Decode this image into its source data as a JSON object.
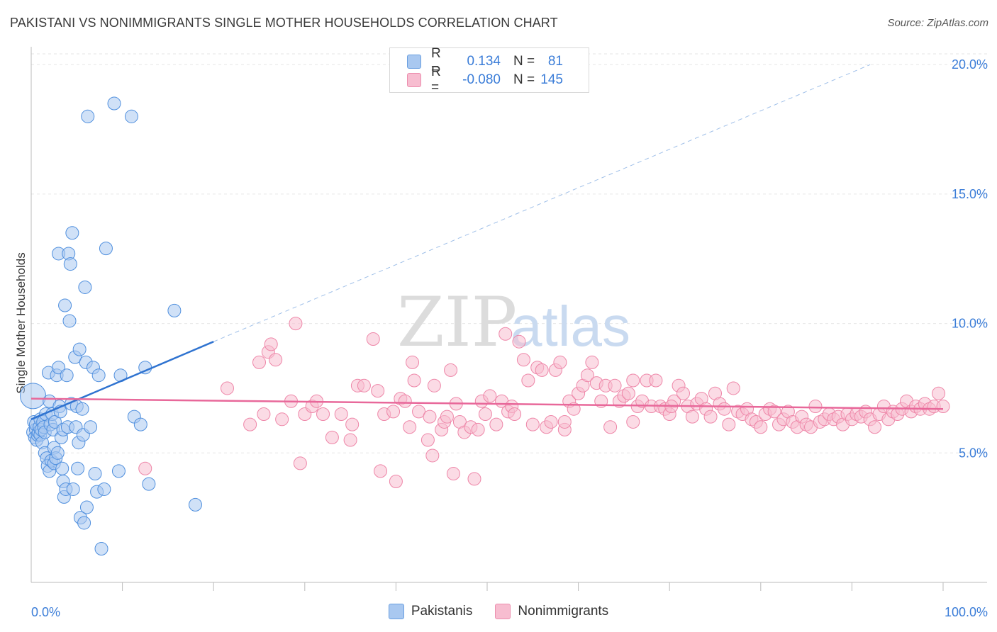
{
  "title": "PAKISTANI VS NONIMMIGRANTS SINGLE MOTHER HOUSEHOLDS CORRELATION CHART",
  "source": "Source: ZipAtlas.com",
  "watermark": {
    "zip": "ZIP",
    "atlas": "atlas"
  },
  "legend": {
    "rows": [
      {
        "r_label": "R =",
        "r_value": "0.134",
        "n_label": "N =",
        "n_value": "81",
        "color": "#a9c8f0",
        "border": "#6a9fe0"
      },
      {
        "r_label": "R =",
        "r_value": "-0.080",
        "n_label": "N =",
        "n_value": "145",
        "color": "#f7bdd0",
        "border": "#ec8eae"
      }
    ]
  },
  "bottom_legend": [
    {
      "label": "Pakistanis",
      "color": "#a9c8f0",
      "border": "#6a9fe0"
    },
    {
      "label": "Nonimmigrants",
      "color": "#f7bdd0",
      "border": "#ec8eae"
    }
  ],
  "chart_data": {
    "type": "scatter",
    "title": "PAKISTANI VS NONIMMIGRANTS SINGLE MOTHER HOUSEHOLDS CORRELATION CHART",
    "xlabel": "",
    "ylabel": "Single Mother Households",
    "xlim": [
      0,
      100
    ],
    "ylim": [
      0,
      20.8
    ],
    "x_tick_labels": [
      "0.0%",
      "100.0%"
    ],
    "y_ticks": [
      5,
      10,
      15,
      20
    ],
    "y_tick_labels": [
      "5.0%",
      "10.0%",
      "15.0%",
      "20.0%"
    ],
    "grid": true,
    "colors": {
      "pakistanis": "#4f8fde",
      "nonimmigrants": "#ee86a8",
      "blue_line": "#2f73d0",
      "pink_line": "#e8689a",
      "tick_label": "#3b7dd8"
    },
    "series": [
      {
        "name": "Pakistanis",
        "trend": {
          "x0": 0,
          "y0": 6.3,
          "x1": 20,
          "y1": 9.3,
          "dashed_to_x": 92,
          "dashed_to_y": 20.0
        },
        "points": [
          [
            0.2,
            7.2
          ],
          [
            0.2,
            5.8
          ],
          [
            0.3,
            6.2
          ],
          [
            0.4,
            5.6
          ],
          [
            0.5,
            5.9
          ],
          [
            0.5,
            6.1
          ],
          [
            0.6,
            5.5
          ],
          [
            0.7,
            5.7
          ],
          [
            0.8,
            5.8
          ],
          [
            0.9,
            6.0
          ],
          [
            1.0,
            6.3
          ],
          [
            1.0,
            5.7
          ],
          [
            1.1,
            5.9
          ],
          [
            1.2,
            5.4
          ],
          [
            1.3,
            6.2
          ],
          [
            1.4,
            6.0
          ],
          [
            1.5,
            5.8
          ],
          [
            1.5,
            5.0
          ],
          [
            1.6,
            6.5
          ],
          [
            1.7,
            4.8
          ],
          [
            1.8,
            4.5
          ],
          [
            1.9,
            8.1
          ],
          [
            2.0,
            7.0
          ],
          [
            2.0,
            4.3
          ],
          [
            2.1,
            6.1
          ],
          [
            2.2,
            4.7
          ],
          [
            2.3,
            6.5
          ],
          [
            2.4,
            5.9
          ],
          [
            2.5,
            5.2
          ],
          [
            2.5,
            4.6
          ],
          [
            2.6,
            6.2
          ],
          [
            2.7,
            4.8
          ],
          [
            2.8,
            8.0
          ],
          [
            2.9,
            5.0
          ],
          [
            3.0,
            8.3
          ],
          [
            3.0,
            12.7
          ],
          [
            3.1,
            6.8
          ],
          [
            3.2,
            6.6
          ],
          [
            3.3,
            5.6
          ],
          [
            3.4,
            4.4
          ],
          [
            3.5,
            3.9
          ],
          [
            3.5,
            5.9
          ],
          [
            3.6,
            3.3
          ],
          [
            3.7,
            10.7
          ],
          [
            3.8,
            3.6
          ],
          [
            3.9,
            8.0
          ],
          [
            4.0,
            6.0
          ],
          [
            4.1,
            12.7
          ],
          [
            4.2,
            10.1
          ],
          [
            4.3,
            12.3
          ],
          [
            4.4,
            6.9
          ],
          [
            4.5,
            13.5
          ],
          [
            4.6,
            3.6
          ],
          [
            4.8,
            8.7
          ],
          [
            4.9,
            6.0
          ],
          [
            5.0,
            6.8
          ],
          [
            5.1,
            4.4
          ],
          [
            5.2,
            5.4
          ],
          [
            5.3,
            9.0
          ],
          [
            5.4,
            2.5
          ],
          [
            5.6,
            6.7
          ],
          [
            5.7,
            5.7
          ],
          [
            5.8,
            2.3
          ],
          [
            5.9,
            11.4
          ],
          [
            6.0,
            8.5
          ],
          [
            6.1,
            2.9
          ],
          [
            6.2,
            18.0
          ],
          [
            6.5,
            6.0
          ],
          [
            6.8,
            8.3
          ],
          [
            7.0,
            4.2
          ],
          [
            7.2,
            3.5
          ],
          [
            7.4,
            8.0
          ],
          [
            7.7,
            1.3
          ],
          [
            8.0,
            3.6
          ],
          [
            8.2,
            12.9
          ],
          [
            9.1,
            18.5
          ],
          [
            9.6,
            4.3
          ],
          [
            9.8,
            8.0
          ],
          [
            11.0,
            18.0
          ],
          [
            11.3,
            6.4
          ],
          [
            12.0,
            6.1
          ],
          [
            12.5,
            8.3
          ],
          [
            12.9,
            3.8
          ],
          [
            15.7,
            10.5
          ],
          [
            18.0,
            3.0
          ]
        ]
      },
      {
        "name": "Nonimmigrants",
        "trend": {
          "x0": 0,
          "y0": 7.1,
          "x1": 100,
          "y1": 6.7
        },
        "points": [
          [
            12.5,
            4.4
          ],
          [
            21.5,
            7.5
          ],
          [
            24.0,
            6.1
          ],
          [
            25.0,
            8.5
          ],
          [
            25.5,
            6.5
          ],
          [
            26.0,
            8.9
          ],
          [
            26.3,
            9.2
          ],
          [
            26.8,
            8.6
          ],
          [
            27.5,
            6.3
          ],
          [
            28.5,
            7.0
          ],
          [
            29.0,
            10.0
          ],
          [
            29.5,
            4.6
          ],
          [
            30.0,
            6.5
          ],
          [
            30.8,
            6.8
          ],
          [
            31.3,
            7.0
          ],
          [
            32.0,
            6.5
          ],
          [
            33.0,
            5.6
          ],
          [
            34.0,
            6.5
          ],
          [
            35.0,
            5.5
          ],
          [
            35.2,
            6.1
          ],
          [
            35.8,
            7.6
          ],
          [
            36.5,
            7.6
          ],
          [
            37.5,
            9.4
          ],
          [
            38.0,
            7.4
          ],
          [
            38.3,
            4.3
          ],
          [
            38.7,
            6.5
          ],
          [
            39.7,
            6.6
          ],
          [
            40.0,
            3.9
          ],
          [
            40.5,
            7.1
          ],
          [
            41.0,
            7.0
          ],
          [
            41.5,
            6.0
          ],
          [
            41.8,
            8.5
          ],
          [
            42.0,
            7.8
          ],
          [
            42.5,
            6.6
          ],
          [
            43.5,
            5.5
          ],
          [
            43.7,
            6.4
          ],
          [
            44.0,
            4.9
          ],
          [
            44.2,
            7.6
          ],
          [
            45.0,
            5.9
          ],
          [
            45.3,
            6.2
          ],
          [
            45.6,
            6.4
          ],
          [
            46.0,
            8.2
          ],
          [
            46.3,
            4.2
          ],
          [
            46.6,
            6.9
          ],
          [
            47.0,
            6.2
          ],
          [
            47.5,
            5.8
          ],
          [
            48.2,
            6.0
          ],
          [
            48.6,
            4.0
          ],
          [
            49.0,
            5.9
          ],
          [
            49.4,
            7.0
          ],
          [
            49.8,
            6.5
          ],
          [
            50.3,
            7.2
          ],
          [
            51.0,
            6.1
          ],
          [
            51.6,
            7.0
          ],
          [
            52.0,
            9.6
          ],
          [
            52.3,
            6.6
          ],
          [
            52.7,
            6.8
          ],
          [
            53.0,
            6.5
          ],
          [
            53.5,
            9.3
          ],
          [
            54.0,
            8.6
          ],
          [
            54.5,
            7.8
          ],
          [
            55.0,
            6.1
          ],
          [
            55.5,
            8.3
          ],
          [
            56.0,
            8.2
          ],
          [
            56.5,
            6.0
          ],
          [
            57.0,
            6.2
          ],
          [
            57.5,
            8.2
          ],
          [
            58.0,
            8.5
          ],
          [
            58.5,
            5.9
          ],
          [
            59.0,
            7.0
          ],
          [
            59.5,
            6.7
          ],
          [
            60.0,
            7.3
          ],
          [
            60.5,
            7.6
          ],
          [
            61.0,
            8.0
          ],
          [
            61.5,
            8.5
          ],
          [
            62.0,
            7.7
          ],
          [
            62.5,
            7.0
          ],
          [
            63.0,
            7.6
          ],
          [
            63.5,
            6.0
          ],
          [
            64.0,
            7.6
          ],
          [
            64.5,
            7.0
          ],
          [
            65.0,
            7.2
          ],
          [
            65.5,
            7.3
          ],
          [
            66.0,
            7.8
          ],
          [
            66.5,
            6.8
          ],
          [
            67.0,
            7.0
          ],
          [
            67.5,
            7.8
          ],
          [
            68.0,
            6.8
          ],
          [
            68.5,
            7.8
          ],
          [
            69.0,
            6.8
          ],
          [
            69.5,
            6.7
          ],
          [
            70.0,
            6.5
          ],
          [
            70.5,
            7.0
          ],
          [
            71.0,
            7.6
          ],
          [
            71.5,
            7.3
          ],
          [
            72.0,
            6.8
          ],
          [
            72.5,
            6.4
          ],
          [
            73.0,
            6.9
          ],
          [
            73.5,
            7.1
          ],
          [
            74.0,
            6.7
          ],
          [
            74.5,
            6.4
          ],
          [
            75.0,
            7.3
          ],
          [
            75.5,
            6.9
          ],
          [
            76.0,
            6.7
          ],
          [
            76.5,
            6.1
          ],
          [
            77.0,
            7.5
          ],
          [
            77.5,
            6.6
          ],
          [
            78.0,
            6.5
          ],
          [
            78.5,
            6.7
          ],
          [
            79.0,
            6.3
          ],
          [
            79.5,
            6.2
          ],
          [
            80.0,
            6.0
          ],
          [
            80.5,
            6.5
          ],
          [
            81.0,
            6.7
          ],
          [
            81.5,
            6.6
          ],
          [
            82.0,
            6.1
          ],
          [
            82.5,
            6.3
          ],
          [
            83.0,
            6.6
          ],
          [
            83.5,
            6.2
          ],
          [
            84.0,
            6.0
          ],
          [
            84.5,
            6.4
          ],
          [
            85.0,
            6.1
          ],
          [
            85.5,
            6.0
          ],
          [
            86.0,
            6.8
          ],
          [
            86.5,
            6.2
          ],
          [
            87.0,
            6.3
          ],
          [
            87.5,
            6.5
          ],
          [
            88.0,
            6.3
          ],
          [
            88.5,
            6.4
          ],
          [
            89.0,
            6.1
          ],
          [
            89.5,
            6.5
          ],
          [
            90.0,
            6.3
          ],
          [
            90.5,
            6.5
          ],
          [
            91.0,
            6.4
          ],
          [
            91.5,
            6.6
          ],
          [
            92.0,
            6.3
          ],
          [
            92.5,
            6.0
          ],
          [
            93.0,
            6.5
          ],
          [
            93.5,
            6.8
          ],
          [
            94.0,
            6.3
          ],
          [
            94.5,
            6.6
          ],
          [
            95.0,
            6.5
          ],
          [
            95.5,
            6.7
          ],
          [
            96.0,
            7.0
          ],
          [
            96.5,
            6.6
          ],
          [
            97.0,
            6.8
          ],
          [
            97.5,
            6.7
          ],
          [
            98.0,
            6.9
          ],
          [
            98.5,
            6.7
          ],
          [
            99.0,
            6.8
          ],
          [
            99.5,
            7.3
          ],
          [
            100.0,
            6.8
          ],
          [
            58.5,
            6.2
          ],
          [
            66.0,
            6.2
          ],
          [
            70.2,
            6.8
          ]
        ]
      }
    ]
  }
}
